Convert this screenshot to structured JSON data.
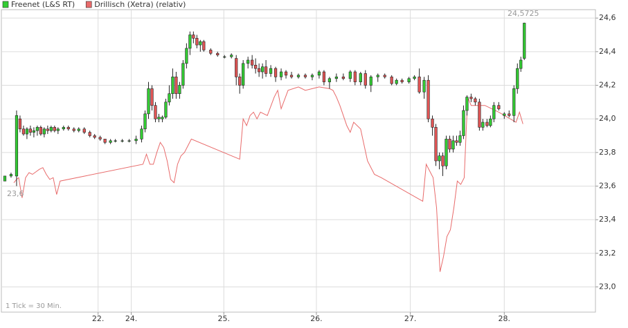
{
  "chart_data": {
    "type": "candlestick",
    "series": [
      {
        "name": "Freenet (L&S RT)",
        "color": "#33cc33",
        "down_color": "#e05555",
        "ohlc": [
          [
            1,
            23.63,
            23.66,
            23.63,
            23.66
          ],
          [
            2.8,
            23.66,
            23.68,
            23.65,
            23.67
          ],
          [
            4.4,
            23.66,
            24.05,
            23.6,
            24.02
          ],
          [
            5.4,
            24.0,
            24.02,
            23.92,
            23.94
          ],
          [
            6.4,
            23.94,
            23.96,
            23.9,
            23.91
          ],
          [
            7.4,
            23.91,
            23.95,
            23.88,
            23.94
          ],
          [
            8.4,
            23.94,
            23.96,
            23.9,
            23.92
          ],
          [
            9.4,
            23.92,
            23.95,
            23.89,
            23.93
          ],
          [
            10.4,
            23.93,
            23.96,
            23.9,
            23.95
          ],
          [
            11.4,
            23.95,
            23.96,
            23.9,
            23.91
          ],
          [
            12.4,
            23.91,
            23.95,
            23.89,
            23.94
          ],
          [
            13.4,
            23.94,
            23.96,
            23.91,
            23.93
          ],
          [
            14.4,
            23.93,
            23.96,
            23.92,
            23.95
          ],
          [
            15.4,
            23.95,
            23.96,
            23.92,
            23.93
          ],
          [
            16.4,
            23.93,
            23.95,
            23.91,
            23.94
          ],
          [
            18,
            23.94,
            23.96,
            23.93,
            23.95
          ],
          [
            19.4,
            23.95,
            23.96,
            23.93,
            23.94
          ],
          [
            21,
            23.94,
            23.95,
            23.92,
            23.93
          ],
          [
            22.4,
            23.93,
            23.95,
            23.92,
            23.94
          ],
          [
            24,
            23.94,
            23.95,
            23.91,
            23.92
          ],
          [
            25.6,
            23.92,
            23.93,
            23.89,
            23.9
          ],
          [
            27,
            23.9,
            23.91,
            23.88,
            23.89
          ],
          [
            28.6,
            23.89,
            23.9,
            23.87,
            23.88
          ],
          [
            30,
            23.88,
            23.88,
            23.85,
            23.86
          ],
          [
            31.6,
            23.86,
            23.88,
            23.85,
            23.87
          ],
          [
            33,
            23.87,
            23.88,
            23.86,
            23.87
          ],
          [
            35,
            23.87,
            23.88,
            23.86,
            23.87
          ],
          [
            37,
            23.87,
            23.88,
            23.86,
            23.87
          ],
          [
            39,
            23.87,
            23.9,
            23.85,
            23.88
          ],
          [
            40.6,
            23.88,
            23.96,
            23.86,
            23.94
          ],
          [
            41.6,
            23.94,
            24.05,
            23.92,
            24.03
          ],
          [
            42.6,
            24.03,
            24.22,
            24.0,
            24.18
          ],
          [
            43.6,
            24.18,
            24.2,
            24.05,
            24.08
          ],
          [
            44.6,
            24.08,
            24.1,
            23.98,
            24.0
          ],
          [
            45.6,
            24.0,
            24.03,
            23.98,
            24.01
          ],
          [
            46.6,
            24.0,
            24.02,
            23.98,
            24.01
          ],
          [
            47.6,
            24.01,
            24.12,
            24.0,
            24.1
          ],
          [
            48.6,
            24.1,
            24.2,
            24.08,
            24.15
          ],
          [
            49.6,
            24.15,
            24.3,
            24.12,
            24.25
          ],
          [
            50.6,
            24.25,
            24.28,
            24.12,
            24.15
          ],
          [
            51.6,
            24.15,
            24.22,
            24.12,
            24.2
          ],
          [
            52.6,
            24.2,
            24.35,
            24.18,
            24.33
          ],
          [
            53.6,
            24.33,
            24.45,
            24.3,
            24.42
          ],
          [
            54.6,
            24.42,
            24.52,
            24.38,
            24.5
          ],
          [
            55.6,
            24.5,
            24.52,
            24.45,
            24.48
          ],
          [
            56.6,
            24.48,
            24.5,
            24.42,
            24.44
          ],
          [
            57.6,
            24.44,
            24.47,
            24.4,
            24.46
          ],
          [
            58.6,
            24.46,
            24.47,
            24.4,
            24.41
          ],
          [
            60.6,
            24.41,
            24.42,
            24.38,
            24.39
          ],
          [
            62.6,
            24.39,
            24.4,
            24.37,
            24.38
          ],
          [
            64.6,
            24.37,
            24.38,
            24.36,
            24.37
          ],
          [
            66.6,
            24.37,
            24.39,
            24.36,
            24.38
          ],
          [
            68,
            24.36,
            24.38,
            24.2,
            24.25
          ],
          [
            69,
            24.25,
            24.27,
            24.15,
            24.2
          ],
          [
            70,
            24.2,
            24.35,
            24.18,
            24.33
          ],
          [
            71.4,
            24.33,
            24.37,
            24.3,
            24.35
          ],
          [
            72.6,
            24.35,
            24.38,
            24.3,
            24.32
          ],
          [
            73.6,
            24.32,
            24.36,
            24.27,
            24.3
          ],
          [
            74.6,
            24.3,
            24.33,
            24.25,
            24.28
          ],
          [
            75.6,
            24.28,
            24.33,
            24.24,
            24.31
          ],
          [
            76.6,
            24.31,
            24.35,
            24.25,
            24.27
          ],
          [
            78,
            24.27,
            24.32,
            24.25,
            24.3
          ],
          [
            79.4,
            24.3,
            24.31,
            24.22,
            24.25
          ],
          [
            81,
            24.25,
            24.3,
            24.23,
            24.28
          ],
          [
            82.4,
            24.28,
            24.29,
            24.24,
            24.26
          ],
          [
            84,
            24.26,
            24.28,
            24.24,
            24.25
          ],
          [
            86,
            24.25,
            24.27,
            24.24,
            24.26
          ],
          [
            88,
            24.26,
            24.27,
            24.24,
            24.25
          ],
          [
            90,
            24.25,
            24.27,
            24.23,
            24.26
          ],
          [
            92,
            24.26,
            24.29,
            24.24,
            24.28
          ],
          [
            93.4,
            24.28,
            24.29,
            24.2,
            24.22
          ],
          [
            95,
            24.22,
            24.25,
            24.18,
            24.24
          ],
          [
            97,
            24.24,
            24.27,
            24.22,
            24.25
          ],
          [
            99,
            24.25,
            24.27,
            24.23,
            24.24
          ],
          [
            101,
            24.24,
            24.29,
            24.22,
            24.28
          ],
          [
            102.4,
            24.28,
            24.29,
            24.2,
            24.22
          ],
          [
            104,
            24.22,
            24.28,
            24.2,
            24.27
          ],
          [
            105.4,
            24.27,
            24.29,
            24.18,
            24.2
          ],
          [
            107,
            24.2,
            24.26,
            24.16,
            24.25
          ],
          [
            109,
            24.25,
            24.27,
            24.22,
            24.26
          ],
          [
            111,
            24.26,
            24.27,
            24.24,
            24.25
          ],
          [
            113,
            24.25,
            24.26,
            24.2,
            24.21
          ],
          [
            114.4,
            24.21,
            24.24,
            24.2,
            24.23
          ],
          [
            116,
            24.23,
            24.24,
            24.21,
            24.22
          ],
          [
            118,
            24.22,
            24.25,
            24.21,
            24.24
          ],
          [
            119.6,
            24.24,
            24.26,
            24.23,
            24.25
          ],
          [
            121,
            24.25,
            24.3,
            24.15,
            24.16
          ],
          [
            122.4,
            24.16,
            24.25,
            24.12,
            24.23
          ],
          [
            123.6,
            24.23,
            24.26,
            23.98,
            24.0
          ],
          [
            124.8,
            24.0,
            24.02,
            23.9,
            23.95
          ],
          [
            125.8,
            23.95,
            23.97,
            23.72,
            23.75
          ],
          [
            126.8,
            23.75,
            23.8,
            23.7,
            23.78
          ],
          [
            127.8,
            23.78,
            23.8,
            23.66,
            23.72
          ],
          [
            128.8,
            23.72,
            23.9,
            23.7,
            23.88
          ],
          [
            129.8,
            23.88,
            23.9,
            23.8,
            23.82
          ],
          [
            130.8,
            23.82,
            23.9,
            23.8,
            23.87
          ],
          [
            131.8,
            23.87,
            23.9,
            23.84,
            23.86
          ],
          [
            132.8,
            23.86,
            23.93,
            23.84,
            23.9
          ],
          [
            133.8,
            23.9,
            24.08,
            23.88,
            24.05
          ],
          [
            134.8,
            24.05,
            24.14,
            24.02,
            24.13
          ],
          [
            136,
            24.13,
            24.15,
            24.1,
            24.12
          ],
          [
            137.2,
            24.12,
            24.13,
            24.08,
            24.1
          ],
          [
            138.4,
            24.1,
            24.12,
            23.93,
            23.95
          ],
          [
            139.4,
            23.95,
            24.0,
            23.93,
            23.98
          ],
          [
            140.6,
            23.98,
            24.0,
            23.95,
            23.96
          ],
          [
            141.6,
            23.96,
            24.02,
            23.95,
            24.0
          ],
          [
            142.6,
            24.0,
            24.1,
            23.98,
            24.08
          ],
          [
            144,
            24.08,
            24.1,
            24.05,
            24.06
          ],
          [
            145.6,
            24.02,
            24.04,
            24.0,
            24.03
          ],
          [
            147,
            24.03,
            24.05,
            24.01,
            24.02
          ],
          [
            148.4,
            24.02,
            24.2,
            23.98,
            24.18
          ],
          [
            149.4,
            24.18,
            24.33,
            24.15,
            24.3
          ],
          [
            150.4,
            24.3,
            24.37,
            24.28,
            24.35
          ],
          [
            151.4,
            24.36,
            24.5725,
            24.35,
            24.57
          ]
        ]
      },
      {
        "name": "Drillisch (Xetra) (relativ)",
        "color": "#e86a6a",
        "type": "line",
        "x": [
          3.6,
          4.4,
          5,
          6,
          7,
          8,
          9,
          11,
          12,
          13,
          14,
          15,
          16,
          17,
          41,
          42,
          43,
          44,
          45,
          46,
          47,
          48,
          49,
          50,
          51,
          52,
          53,
          54,
          55,
          69,
          70,
          71,
          72,
          73,
          74,
          75,
          77,
          79,
          80,
          81,
          83,
          86,
          88,
          90,
          92,
          95,
          96,
          97,
          98,
          99,
          100,
          101,
          102,
          104,
          106,
          108,
          110,
          122,
          123,
          124,
          125,
          126,
          127,
          128,
          129,
          130,
          131,
          132,
          133,
          134,
          135,
          136,
          138,
          140,
          144,
          149,
          150,
          151
        ],
        "values": [
          23.62,
          23.64,
          23.65,
          23.53,
          23.65,
          23.68,
          23.67,
          23.7,
          23.71,
          23.67,
          23.64,
          23.65,
          23.55,
          23.63,
          23.73,
          23.79,
          23.73,
          23.73,
          23.8,
          23.86,
          23.83,
          23.75,
          23.64,
          23.62,
          23.73,
          23.78,
          23.8,
          23.84,
          23.88,
          23.76,
          24.0,
          23.96,
          24.02,
          24.04,
          24.0,
          24.04,
          24.02,
          24.13,
          24.17,
          24.06,
          24.17,
          24.19,
          24.17,
          24.18,
          24.19,
          24.18,
          24.17,
          24.13,
          24.08,
          24.02,
          23.96,
          23.92,
          23.98,
          23.94,
          23.75,
          23.67,
          23.65,
          23.51,
          23.73,
          23.69,
          23.65,
          23.47,
          23.09,
          23.18,
          23.3,
          23.34,
          23.47,
          23.63,
          23.61,
          23.65,
          24.13,
          24.08,
          24.08,
          24.08,
          24.04,
          23.98,
          24.04,
          23.97
        ]
      }
    ],
    "xlim": [
      0,
      172
    ],
    "xticks": [
      {
        "value": 28,
        "label": "22."
      },
      {
        "value": 37.6,
        "label": "24."
      },
      {
        "value": 64.4,
        "label": "25."
      },
      {
        "value": 91.2,
        "label": "26."
      },
      {
        "value": 118.4,
        "label": "27."
      },
      {
        "value": 145.6,
        "label": "28."
      }
    ],
    "ylim": [
      22.85,
      24.65
    ],
    "yticks": [
      {
        "value": 23.0,
        "label": "23,0"
      },
      {
        "value": 23.2,
        "label": "23,2"
      },
      {
        "value": 23.4,
        "label": "23,4"
      },
      {
        "value": 23.6,
        "label": "23,6"
      },
      {
        "value": 23.8,
        "label": "23,8"
      },
      {
        "value": 24.0,
        "label": "24,0"
      },
      {
        "value": 24.2,
        "label": "24,2"
      },
      {
        "value": 24.4,
        "label": "24,4"
      },
      {
        "value": 24.6,
        "label": "24,6"
      }
    ],
    "grid": true,
    "annotations": [
      "24,5725",
      "23,6",
      "1 Tick = 30 Min."
    ]
  }
}
